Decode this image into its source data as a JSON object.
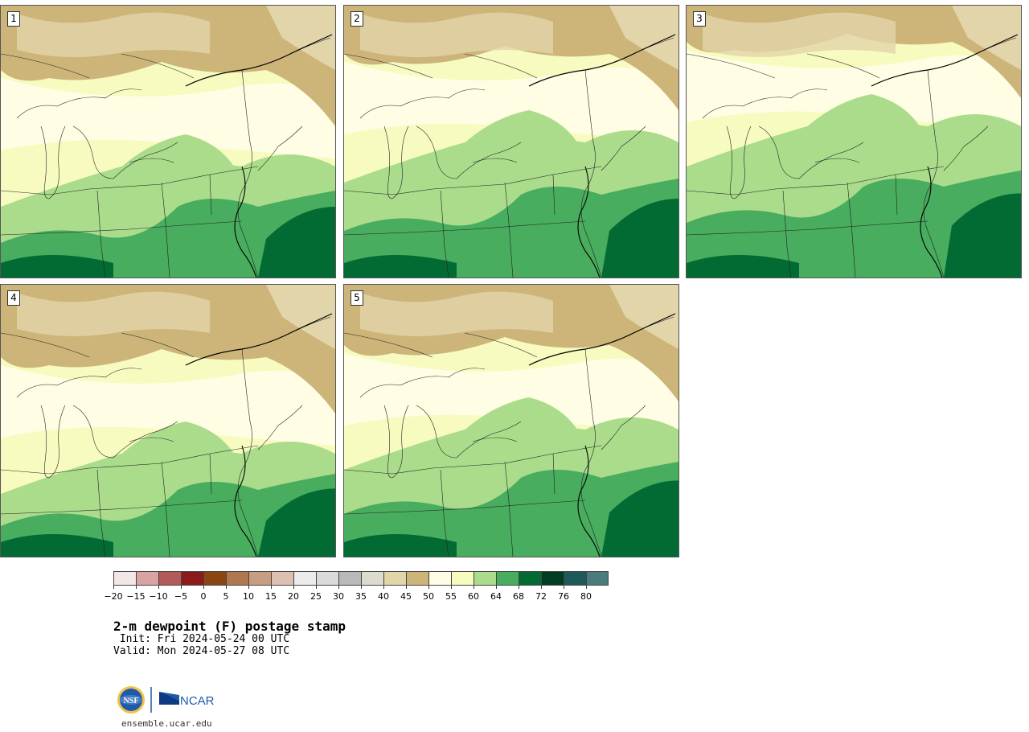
{
  "panels": [
    {
      "label": "1"
    },
    {
      "label": "2"
    },
    {
      "label": "3"
    },
    {
      "label": "4"
    },
    {
      "label": "5"
    }
  ],
  "colorbar": {
    "labels": [
      "−20",
      "−15",
      "−10",
      "−5",
      "0",
      "5",
      "10",
      "15",
      "20",
      "25",
      "30",
      "35",
      "40",
      "45",
      "50",
      "55",
      "60",
      "64",
      "68",
      "72",
      "76",
      "80"
    ],
    "colors": [
      "#f2e6e6",
      "#d9a3a3",
      "#b45a5a",
      "#8b1a1a",
      "#8b4513",
      "#b07850",
      "#c89e82",
      "#dcc0b0",
      "#ececec",
      "#dadada",
      "#b9b9b9",
      "#dddccc",
      "#e2d5aa",
      "#cdb57a",
      "#fffde4",
      "#f7fbbf",
      "#aadc8c",
      "#48ad5e",
      "#026b34",
      "#013d22",
      "#1e5a5a",
      "#4b7b7b"
    ]
  },
  "title": "2-m dewpoint (F) postage stamp",
  "init": " Init: Fri 2024-05-24 00 UTC",
  "valid": "Valid: Mon 2024-05-27 08 UTC",
  "logo": {
    "nsf_text": "NSF",
    "ncar_text": "NCAR"
  },
  "url": "ensemble.ucar.edu",
  "palette": {
    "tan": "#cdb57a",
    "light_tan": "#e2d5aa",
    "cream": "#fffde4",
    "pale_yellow": "#f7fbbf",
    "light_green": "#aadc8c",
    "green": "#48ad5e",
    "dark_green": "#026b34"
  }
}
